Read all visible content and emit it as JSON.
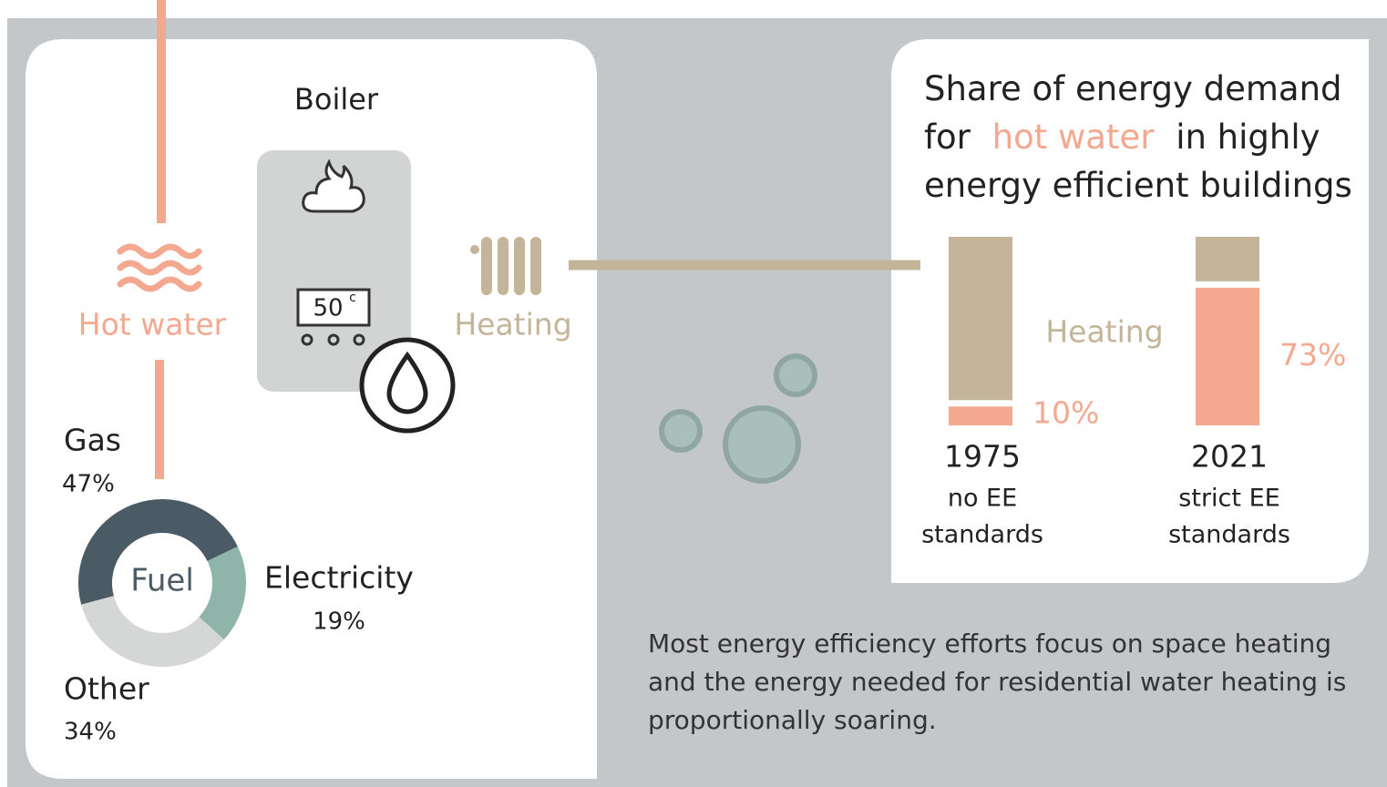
{
  "chart_data": [
    {
      "type": "pie",
      "title": "Fuel",
      "categories": [
        "Gas",
        "Electricity",
        "Other"
      ],
      "values": [
        47,
        19,
        34
      ],
      "value_labels": [
        "47%",
        "19%",
        "34%"
      ],
      "colors": [
        "#4b5b66",
        "#8fb5ab",
        "#d5d6d6"
      ]
    },
    {
      "type": "bar",
      "title_lines": [
        "Share of energy demand",
        "for",
        "in highly",
        "energy efficient buildings"
      ],
      "categories": [
        "1975",
        "2021"
      ],
      "category_notes": [
        [
          "no EE",
          "standards"
        ],
        [
          "strict EE",
          "standards"
        ]
      ],
      "series": [
        {
          "name": "Heating",
          "color": "#c4b49a"
        },
        {
          "name": "hot water",
          "color": "#f3a88f",
          "values": [
            10,
            73
          ],
          "value_labels": [
            "10%",
            "73%"
          ]
        }
      ],
      "ylim": [
        0,
        100
      ]
    }
  ],
  "diagram": {
    "boiler": "Boiler",
    "display": "50",
    "display_unit": "c",
    "hot_water": "Hot water",
    "heating": "Heating",
    "caption": [
      "Most energy efficiency efforts focus on space heating",
      "and the energy needed for residential water heating is",
      "proportionally soaring."
    ]
  }
}
